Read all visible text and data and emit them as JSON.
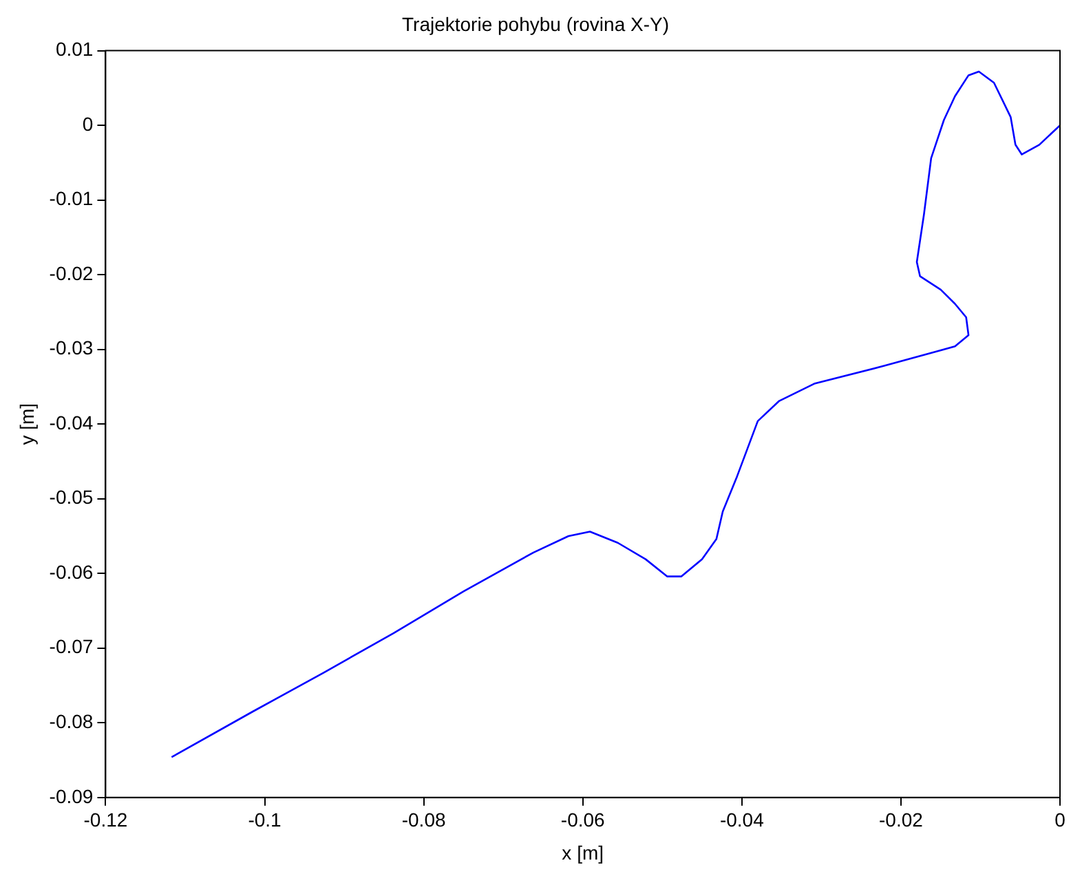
{
  "chart_data": {
    "type": "line",
    "title": "Trajektorie pohybu (rovina X-Y)",
    "xlabel": "x [m]",
    "ylabel": "y [m]",
    "xlim": [
      -0.12,
      0
    ],
    "xticks": [
      -0.12,
      -0.1,
      -0.08,
      -0.06,
      -0.04,
      -0.02,
      0
    ],
    "ylim": [
      -0.09,
      0.01
    ],
    "yticks": [
      -0.09,
      -0.08,
      -0.07,
      -0.06,
      -0.05,
      -0.04,
      -0.03,
      -0.02,
      -0.01,
      0,
      0.01
    ],
    "grid": false,
    "legend": false,
    "marker": "none",
    "line_style": "solid",
    "series": [
      {
        "color": "#0000ff",
        "x": [
          -0.1117,
          -0.1015,
          -0.0926,
          -0.0838,
          -0.075,
          -0.0662,
          -0.0618,
          -0.0591,
          -0.0556,
          -0.0521,
          -0.0494,
          -0.0476,
          -0.045,
          -0.0432,
          -0.0424,
          -0.0406,
          -0.038,
          -0.0353,
          -0.0309,
          -0.0221,
          -0.0132,
          -0.0115,
          -0.0118,
          -0.0132,
          -0.015,
          -0.0176,
          -0.018,
          -0.0171,
          -0.0162,
          -0.0146,
          -0.0132,
          -0.0115,
          -0.0102,
          -0.0083,
          -0.0062,
          -0.0056,
          -0.0048,
          -0.0026,
          0
        ],
        "values": [
          -0.0846,
          -0.0785,
          -0.0733,
          -0.068,
          -0.0624,
          -0.0572,
          -0.055,
          -0.0544,
          -0.0559,
          -0.0581,
          -0.0604,
          -0.0604,
          -0.0581,
          -0.0554,
          -0.0517,
          -0.047,
          -0.0396,
          -0.0369,
          -0.0346,
          -0.0322,
          -0.0296,
          -0.0281,
          -0.0257,
          -0.0239,
          -0.022,
          -0.0202,
          -0.0183,
          -0.0119,
          -0.0044,
          0.0007,
          0.0039,
          0.0067,
          0.0072,
          0.0057,
          0.0011,
          -0.0026,
          -0.0039,
          -0.0026,
          0
        ]
      }
    ]
  }
}
